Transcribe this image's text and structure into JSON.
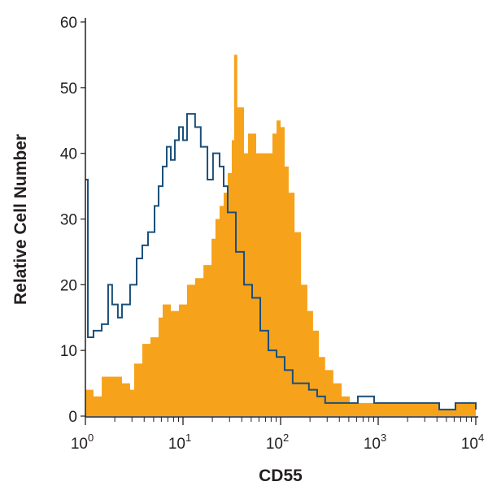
{
  "chart_data": {
    "type": "area",
    "xlabel": "CD55",
    "ylabel": "Relative Cell Number",
    "xscale": "log",
    "xlim": [
      1,
      10000
    ],
    "ylim": [
      0,
      60
    ],
    "xticks": [
      {
        "base": "10",
        "exp": "0"
      },
      {
        "base": "10",
        "exp": "1"
      },
      {
        "base": "10",
        "exp": "2"
      },
      {
        "base": "10",
        "exp": "3"
      },
      {
        "base": "10",
        "exp": "4"
      }
    ],
    "yticks": [
      "0",
      "10",
      "20",
      "30",
      "40",
      "50",
      "60"
    ],
    "grid": false,
    "series": [
      {
        "style": "filled histogram",
        "color": "#f7a21b",
        "x": [
          1.0,
          1.21,
          1.47,
          1.78,
          2.15,
          2.37,
          2.87,
          3.16,
          3.83,
          4.64,
          5.62,
          6.19,
          7.5,
          9.09,
          11.0,
          13.3,
          16.2,
          19.6,
          21.5,
          23.7,
          26.1,
          28.7,
          31.6,
          33.4,
          36.0,
          42.2,
          46.4,
          56.2,
          68.1,
          82.5,
          90.9,
          100,
          110,
          121,
          139,
          162,
          188,
          215,
          247,
          286,
          347,
          422,
          511,
          750,
          1100,
          1960,
          2870,
          4220,
          6190,
          8250,
          10000
        ],
        "y": [
          4,
          3,
          6,
          6,
          6,
          5,
          4,
          8,
          11,
          12,
          15,
          17,
          16,
          17,
          20,
          21,
          23,
          27,
          30,
          32,
          34,
          37,
          42,
          55,
          47,
          40,
          43,
          40,
          40,
          43,
          45,
          44,
          38,
          34,
          28,
          20,
          16,
          13,
          9,
          7,
          5,
          3,
          2,
          2,
          2,
          2,
          2,
          1,
          2,
          2,
          2
        ]
      },
      {
        "style": "outline histogram",
        "color": "#1a4f7a",
        "x": [
          1.0,
          1.06,
          1.21,
          1.47,
          1.71,
          1.88,
          2.15,
          2.37,
          2.87,
          3.35,
          3.83,
          4.38,
          5.11,
          5.62,
          6.19,
          6.81,
          7.5,
          8.25,
          9.09,
          10.0,
          11.0,
          13.3,
          15.2,
          17.8,
          20.3,
          23.7,
          26.1,
          28.7,
          34.8,
          42.2,
          51.1,
          61.9,
          75.0,
          90.9,
          110,
          133,
          162,
          195,
          237,
          286,
          422,
          619,
          908,
          1330,
          1960,
          2870,
          4220,
          6190,
          8250,
          10000
        ],
        "y": [
          36,
          12,
          13,
          14,
          20,
          17,
          15,
          17,
          20,
          24,
          26,
          28,
          32,
          35,
          38,
          41,
          39,
          42,
          44,
          42,
          46,
          44,
          41,
          36,
          40,
          38,
          35,
          31,
          25,
          20,
          18,
          13,
          10,
          9,
          7,
          5,
          5,
          4,
          3,
          2,
          2,
          3,
          2,
          2,
          2,
          2,
          1,
          2,
          2,
          1
        ]
      }
    ]
  }
}
